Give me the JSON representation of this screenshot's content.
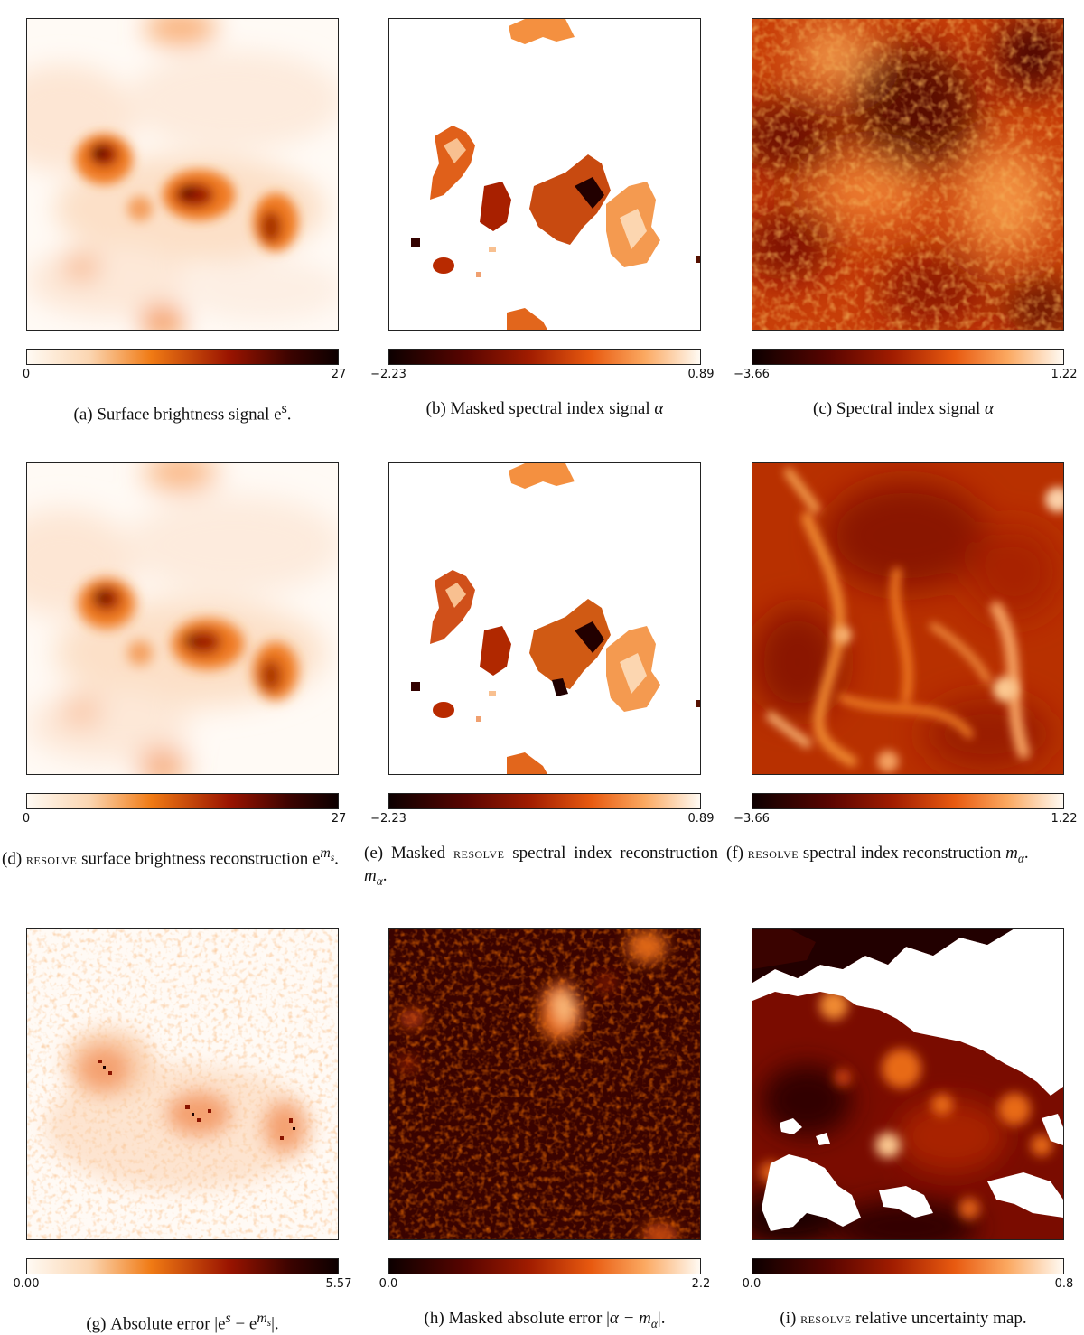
{
  "figure": {
    "panels": [
      {
        "id": "a",
        "cbar_min": "0",
        "cbar_max": "27",
        "colormap": "light-to-dark",
        "label": "(a)",
        "caption_text": "Surface brightness signal e",
        "caption_sup": "s",
        "caption_end": "."
      },
      {
        "id": "b",
        "cbar_min": "−2.23",
        "cbar_max": "0.89",
        "colormap": "dark-to-light",
        "label": "(b)",
        "caption_text": "Masked spectral index signal ",
        "caption_math": "α"
      },
      {
        "id": "c",
        "cbar_min": "−3.66",
        "cbar_max": "1.22",
        "colormap": "dark-to-light",
        "label": "(c)",
        "caption_text": "Spectral index signal ",
        "caption_math": "α"
      },
      {
        "id": "d",
        "cbar_min": "0",
        "cbar_max": "27",
        "colormap": "light-to-dark",
        "label": "(d)",
        "caption_sc": "resolve",
        "caption_text": " surface brightness reconstruction e",
        "caption_sup": "m",
        "caption_sub": "s",
        "caption_end": "."
      },
      {
        "id": "e",
        "cbar_min": "−2.23",
        "cbar_max": "0.89",
        "colormap": "dark-to-light",
        "label": "(e)",
        "caption_pre": "Masked ",
        "caption_sc": "resolve",
        "caption_text": " spectral index reconstruction ",
        "caption_math": "m",
        "caption_sub": "α",
        "caption_end": "."
      },
      {
        "id": "f",
        "cbar_min": "−3.66",
        "cbar_max": "1.22",
        "colormap": "dark-to-light",
        "label": "(f)",
        "caption_sc": "resolve",
        "caption_text": " spectral index reconstruction ",
        "caption_math": "m",
        "caption_sub": "α",
        "caption_end": "."
      },
      {
        "id": "g",
        "cbar_min": "0.00",
        "cbar_max": "5.57",
        "colormap": "light-to-dark",
        "label": "(g)",
        "caption_text": "Absolute error |e",
        "caption_sup": "s",
        "caption_mid": " − e",
        "caption_sup2": "m",
        "caption_sub2": "s",
        "caption_end": "|."
      },
      {
        "id": "h",
        "cbar_min": "0.0",
        "cbar_max": "2.2",
        "colormap": "dark-to-light",
        "label": "(h)",
        "caption_text": "Masked absolute error |",
        "caption_math": "α − m",
        "caption_sub": "α",
        "caption_end": "|."
      },
      {
        "id": "i",
        "cbar_min": "0.0",
        "cbar_max": "0.8",
        "colormap": "dark-to-light",
        "label": "(i)",
        "caption_sc": "resolve",
        "caption_text": " relative uncertainty map."
      }
    ]
  },
  "colors": {
    "heat_light": "#fffaf3",
    "heat_orange": "#f07a14",
    "heat_red": "#9a1400",
    "heat_dark": "#0d0000"
  }
}
